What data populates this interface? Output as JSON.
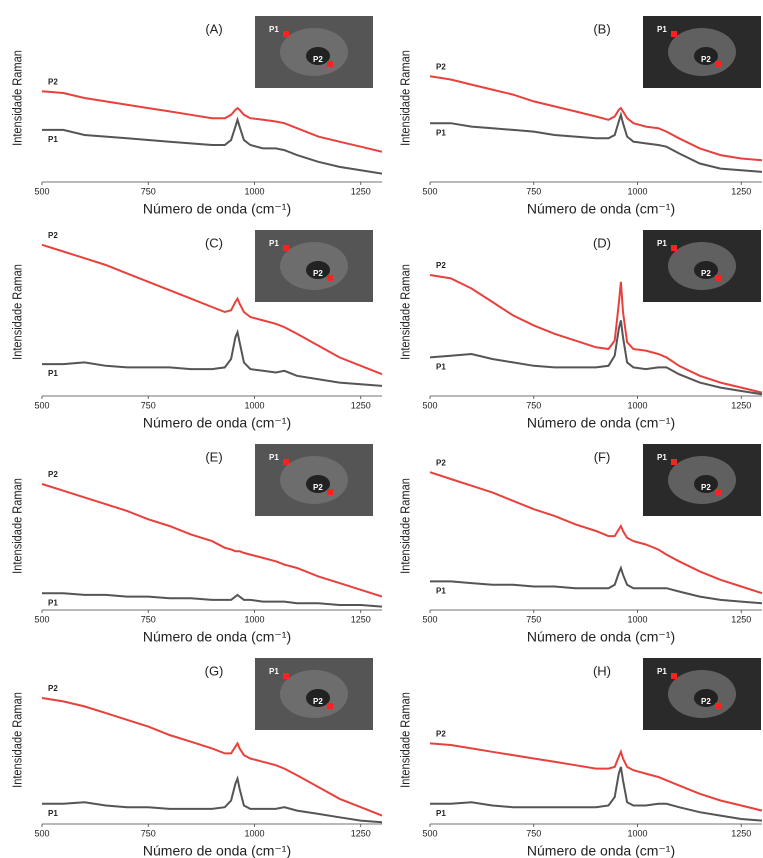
{
  "chart_data": [
    {
      "type": "line",
      "title": "(A)",
      "xlabel": "Número de onda (cm⁻¹)",
      "ylabel": "Intensidade Raman",
      "x": [
        500,
        550,
        600,
        650,
        700,
        750,
        800,
        850,
        900,
        930,
        945,
        955,
        960,
        965,
        975,
        990,
        1020,
        1050,
        1070,
        1100,
        1150,
        1200,
        1250,
        1300
      ],
      "xlim": [
        500,
        1300
      ],
      "xticks": [
        500,
        750,
        1000,
        1250
      ],
      "ylim": [
        0,
        100
      ],
      "series": [
        {
          "name": "P2",
          "color": "#e8413c",
          "values": [
            54,
            53,
            50,
            48,
            46,
            44,
            42,
            40,
            38,
            38,
            40,
            43,
            44,
            43,
            40,
            38,
            37,
            36,
            35,
            32,
            27,
            24,
            21,
            18
          ]
        },
        {
          "name": "P1",
          "color": "#555555",
          "values": [
            31,
            31,
            28,
            27,
            26,
            25,
            24,
            23,
            22,
            22,
            25,
            33,
            37,
            33,
            25,
            22,
            20,
            20,
            19,
            16,
            12,
            9,
            7,
            5
          ]
        }
      ]
    },
    {
      "type": "line",
      "title": "(B)",
      "xlabel": "Número de onda (cm⁻¹)",
      "ylabel": "Intensidade Raman",
      "x": [
        500,
        550,
        600,
        650,
        700,
        750,
        800,
        850,
        900,
        930,
        945,
        955,
        960,
        965,
        975,
        990,
        1020,
        1050,
        1070,
        1100,
        1150,
        1200,
        1250,
        1300
      ],
      "xlim": [
        500,
        1300
      ],
      "xticks": [
        500,
        750,
        1000,
        1250
      ],
      "ylim": [
        0,
        100
      ],
      "series": [
        {
          "name": "P2",
          "color": "#e8413c",
          "values": [
            63,
            61,
            58,
            55,
            52,
            48,
            45,
            42,
            39,
            37,
            39,
            43,
            44,
            42,
            38,
            35,
            33,
            32,
            30,
            26,
            20,
            16,
            14,
            13
          ]
        },
        {
          "name": "P1",
          "color": "#555555",
          "values": [
            35,
            35,
            33,
            32,
            31,
            30,
            28,
            27,
            26,
            26,
            28,
            36,
            40,
            35,
            27,
            24,
            23,
            22,
            21,
            17,
            11,
            8,
            7,
            6
          ]
        }
      ]
    },
    {
      "type": "line",
      "title": "(C)",
      "xlabel": "Número de onda (cm⁻¹)",
      "ylabel": "Intensidade Raman",
      "x": [
        500,
        550,
        600,
        650,
        700,
        750,
        800,
        850,
        900,
        930,
        945,
        955,
        960,
        965,
        975,
        990,
        1020,
        1050,
        1070,
        1100,
        1150,
        1200,
        1250,
        1300
      ],
      "xlim": [
        500,
        1300
      ],
      "xticks": [
        500,
        750,
        1000,
        1250
      ],
      "ylim": [
        0,
        100
      ],
      "series": [
        {
          "name": "P2",
          "color": "#e8413c",
          "values": [
            90,
            86,
            82,
            78,
            73,
            68,
            63,
            58,
            53,
            50,
            51,
            56,
            58,
            55,
            50,
            47,
            45,
            43,
            41,
            37,
            30,
            23,
            18,
            13
          ]
        },
        {
          "name": "P1",
          "color": "#555555",
          "values": [
            19,
            19,
            20,
            18,
            17,
            17,
            17,
            16,
            16,
            17,
            22,
            35,
            38,
            32,
            20,
            16,
            15,
            14,
            15,
            12,
            10,
            8,
            7,
            6
          ]
        }
      ]
    },
    {
      "type": "line",
      "title": "(D)",
      "xlabel": "Número de onda (cm⁻¹)",
      "ylabel": "Intensidade Raman",
      "x": [
        500,
        550,
        600,
        650,
        700,
        750,
        800,
        850,
        900,
        930,
        945,
        955,
        960,
        965,
        975,
        990,
        1020,
        1050,
        1070,
        1100,
        1150,
        1200,
        1250,
        1300
      ],
      "xlim": [
        500,
        1300
      ],
      "xticks": [
        500,
        750,
        1000,
        1250
      ],
      "ylim": [
        0,
        100
      ],
      "series": [
        {
          "name": "P2",
          "color": "#e8413c",
          "values": [
            72,
            70,
            64,
            56,
            48,
            42,
            37,
            33,
            29,
            28,
            33,
            55,
            68,
            50,
            32,
            28,
            27,
            25,
            23,
            18,
            12,
            8,
            5,
            2
          ]
        },
        {
          "name": "P1",
          "color": "#555555",
          "values": [
            23,
            24,
            25,
            22,
            20,
            18,
            17,
            17,
            17,
            18,
            24,
            40,
            45,
            35,
            20,
            17,
            16,
            17,
            17,
            13,
            8,
            5,
            3,
            1
          ]
        }
      ]
    },
    {
      "type": "line",
      "title": "(E)",
      "xlabel": "Número de onda (cm⁻¹)",
      "ylabel": "Intensidade Raman",
      "x": [
        500,
        550,
        600,
        650,
        700,
        750,
        800,
        850,
        900,
        930,
        945,
        955,
        960,
        965,
        975,
        990,
        1020,
        1050,
        1070,
        1100,
        1150,
        1200,
        1250,
        1300
      ],
      "xlim": [
        500,
        1300
      ],
      "xticks": [
        500,
        750,
        1000,
        1250
      ],
      "ylim": [
        0,
        100
      ],
      "series": [
        {
          "name": "P2",
          "color": "#e8413c",
          "values": [
            75,
            71,
            67,
            63,
            59,
            54,
            50,
            45,
            41,
            37,
            36,
            35,
            35,
            35,
            34,
            33,
            31,
            29,
            27,
            25,
            20,
            16,
            12,
            8
          ]
        },
        {
          "name": "P1",
          "color": "#555555",
          "values": [
            10,
            10,
            9,
            9,
            8,
            8,
            7,
            7,
            6,
            6,
            6,
            8,
            9,
            8,
            6,
            6,
            5,
            5,
            5,
            4,
            4,
            3,
            3,
            2
          ]
        }
      ]
    },
    {
      "type": "line",
      "title": "(F)",
      "xlabel": "Número de onda (cm⁻¹)",
      "ylabel": "Intensidade Raman",
      "x": [
        500,
        550,
        600,
        650,
        700,
        750,
        800,
        850,
        900,
        930,
        945,
        955,
        960,
        965,
        975,
        990,
        1020,
        1050,
        1070,
        1100,
        1150,
        1200,
        1250,
        1300
      ],
      "xlim": [
        500,
        1300
      ],
      "xticks": [
        500,
        750,
        1000,
        1250
      ],
      "ylim": [
        0,
        100
      ],
      "series": [
        {
          "name": "P2",
          "color": "#e8413c",
          "values": [
            82,
            78,
            74,
            70,
            65,
            60,
            56,
            51,
            47,
            44,
            44,
            48,
            50,
            47,
            43,
            41,
            39,
            36,
            33,
            29,
            23,
            18,
            14,
            10
          ]
        },
        {
          "name": "P1",
          "color": "#555555",
          "values": [
            17,
            17,
            16,
            15,
            15,
            14,
            14,
            13,
            13,
            13,
            15,
            22,
            25,
            21,
            15,
            13,
            13,
            13,
            13,
            11,
            8,
            6,
            5,
            4
          ]
        }
      ]
    },
    {
      "type": "line",
      "title": "(G)",
      "xlabel": "Número de onda (cm⁻¹)",
      "ylabel": "Intensidade Raman",
      "x": [
        500,
        550,
        600,
        650,
        700,
        750,
        800,
        850,
        900,
        930,
        945,
        955,
        960,
        965,
        975,
        990,
        1020,
        1050,
        1070,
        1100,
        1150,
        1200,
        1250,
        1300
      ],
      "xlim": [
        500,
        1300
      ],
      "xticks": [
        500,
        750,
        1000,
        1250
      ],
      "ylim": [
        0,
        100
      ],
      "series": [
        {
          "name": "P2",
          "color": "#e8413c",
          "values": [
            75,
            73,
            70,
            66,
            62,
            58,
            53,
            49,
            45,
            42,
            42,
            46,
            48,
            45,
            41,
            39,
            37,
            35,
            33,
            29,
            22,
            15,
            10,
            5
          ]
        },
        {
          "name": "P1",
          "color": "#555555",
          "values": [
            12,
            12,
            13,
            11,
            10,
            10,
            9,
            9,
            9,
            10,
            14,
            24,
            27,
            21,
            11,
            9,
            9,
            9,
            10,
            8,
            6,
            4,
            2,
            1
          ]
        }
      ]
    },
    {
      "type": "line",
      "title": "(H)",
      "xlabel": "Número de onda (cm⁻¹)",
      "ylabel": "Intensidade Raman",
      "x": [
        500,
        550,
        600,
        650,
        700,
        750,
        800,
        850,
        900,
        930,
        945,
        955,
        960,
        965,
        975,
        990,
        1020,
        1050,
        1070,
        1100,
        1150,
        1200,
        1250,
        1300
      ],
      "xlim": [
        500,
        1300
      ],
      "xticks": [
        500,
        750,
        1000,
        1250
      ],
      "ylim": [
        0,
        100
      ],
      "series": [
        {
          "name": "P2",
          "color": "#e8413c",
          "values": [
            48,
            47,
            45,
            43,
            41,
            39,
            37,
            35,
            33,
            33,
            34,
            40,
            43,
            39,
            34,
            32,
            30,
            28,
            26,
            23,
            18,
            14,
            11,
            8
          ]
        },
        {
          "name": "P1",
          "color": "#555555",
          "values": [
            12,
            12,
            13,
            11,
            10,
            10,
            10,
            10,
            10,
            11,
            16,
            30,
            34,
            26,
            13,
            11,
            11,
            12,
            12,
            10,
            7,
            5,
            3,
            2
          ]
        }
      ]
    }
  ]
}
